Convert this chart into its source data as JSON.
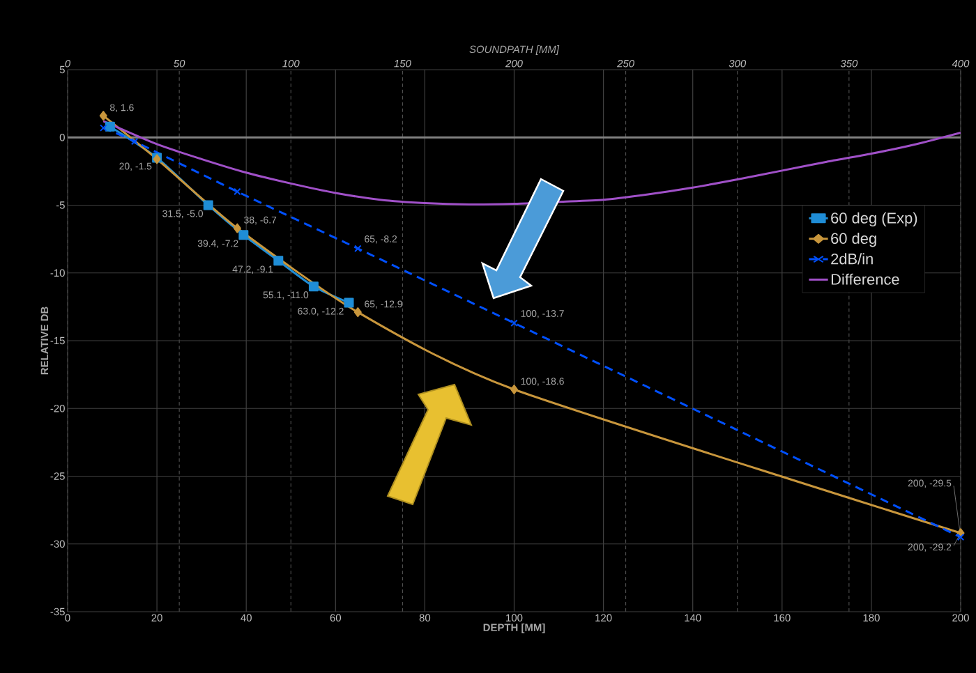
{
  "chart_data": {
    "type": "line",
    "xlabel": "DEPTH [MM]",
    "ylabel": "RELATIVE DB",
    "x2label": "SOUNDPATH [MM]",
    "xlim": [
      0,
      200
    ],
    "xticks": [
      0,
      20,
      40,
      60,
      80,
      100,
      120,
      140,
      160,
      180,
      200
    ],
    "ylim": [
      -35,
      5
    ],
    "yticks": [
      -35,
      -30,
      -25,
      -20,
      -15,
      -10,
      -5,
      0,
      5
    ],
    "x2lim": [
      0,
      400
    ],
    "x2ticks": [
      0,
      50,
      100,
      150,
      200,
      250,
      300,
      350,
      400
    ],
    "grid": true,
    "legend": "top right",
    "ref_lines": [
      {
        "axis": "y",
        "value": 0,
        "color": "#808080"
      }
    ],
    "series": [
      {
        "name": "60 deg (Exp)",
        "color": "#1f8dd6",
        "marker": "square",
        "line_style": "solid",
        "x": [
          9.5,
          20,
          31.5,
          39.4,
          47.2,
          55.1,
          63.0
        ],
        "values": [
          0.8,
          -1.5,
          -5.0,
          -7.2,
          -9.1,
          -11.0,
          -12.2
        ],
        "value_labels": [
          null,
          "20, -1.5",
          "31.5, -5.0",
          "39.4, -7.2",
          "47.2, -9.1",
          "55.1, -11.0",
          "63.0, -12.2"
        ]
      },
      {
        "name": "60 deg",
        "color": "#c8963c",
        "marker": "diamond",
        "line_style": "solid",
        "x": [
          8,
          20,
          38,
          65,
          100,
          200
        ],
        "values": [
          1.6,
          -1.6,
          -6.7,
          -12.9,
          -18.6,
          -29.2
        ],
        "value_labels": [
          "8, 1.6",
          null,
          "38, -6.7",
          "65, -12.9",
          "100, -18.6",
          "200, -29.2"
        ]
      },
      {
        "name": "2dB/in",
        "color": "#0050ff",
        "marker": "cross",
        "line_style": "dashed",
        "x": [
          8,
          15,
          38,
          65,
          100,
          200
        ],
        "values": [
          0.7,
          -0.3,
          -4.0,
          -8.2,
          -13.7,
          -29.5
        ],
        "value_labels": [
          null,
          null,
          null,
          "65, -8.2",
          "100, -13.7",
          "200, -29.5"
        ]
      },
      {
        "name": "Difference",
        "color": "#a050c8",
        "marker": "none",
        "line_style": "solid",
        "x": [
          8,
          20,
          30,
          40,
          50,
          60,
          70,
          80,
          90,
          100,
          110,
          120,
          130,
          140,
          150,
          160,
          170,
          180,
          190,
          200
        ],
        "values": [
          1.2,
          -0.5,
          -1.6,
          -2.6,
          -3.4,
          -4.1,
          -4.6,
          -4.85,
          -4.95,
          -4.9,
          -4.75,
          -4.6,
          -4.2,
          -3.7,
          -3.1,
          -2.45,
          -1.8,
          -1.2,
          -0.5,
          0.35
        ]
      }
    ]
  }
}
